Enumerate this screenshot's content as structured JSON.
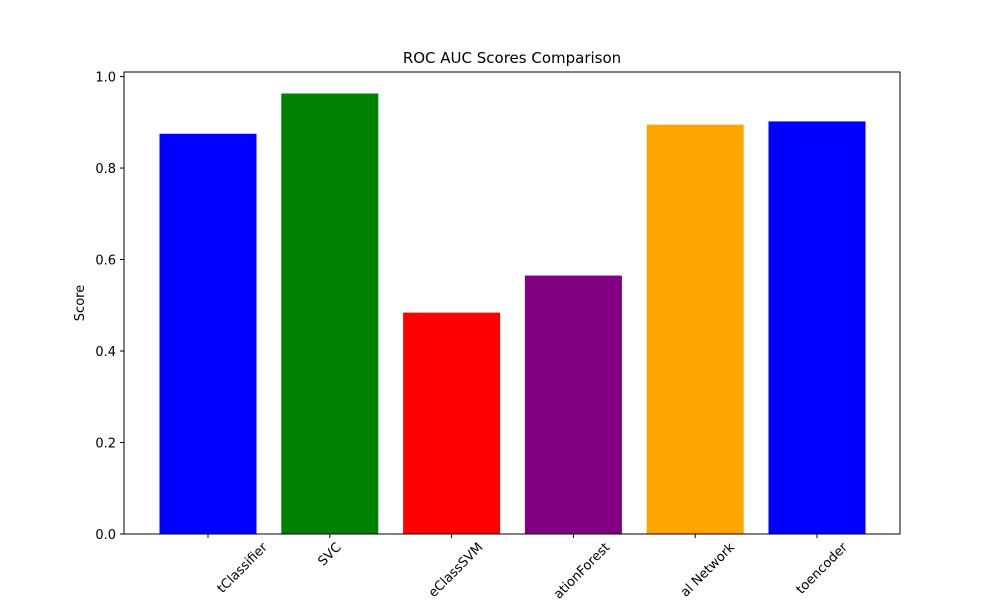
{
  "chart_data": {
    "type": "bar",
    "title": "ROC AUC Scores Comparison",
    "y_label": "Score",
    "categories": [
      "tClassifier",
      "SVC",
      "eClassSVM",
      "ationForest",
      "al Network",
      "toencoder"
    ],
    "values": [
      0.875,
      0.963,
      0.484,
      0.565,
      0.895,
      0.902
    ],
    "colors": [
      "blue",
      "green",
      "red",
      "purple",
      "orange",
      "blue"
    ],
    "ylim": [
      0,
      1.01
    ],
    "yticks": [
      {
        "value": 0,
        "label": "0.0"
      },
      {
        "value": 0.2,
        "label": "0.2"
      },
      {
        "value": 0.4,
        "label": "0.4"
      },
      {
        "value": 0.6,
        "label": "0.6"
      },
      {
        "value": 0.8,
        "label": "0.8"
      },
      {
        "value": 1,
        "label": "1.0"
      }
    ],
    "grid": false
  }
}
